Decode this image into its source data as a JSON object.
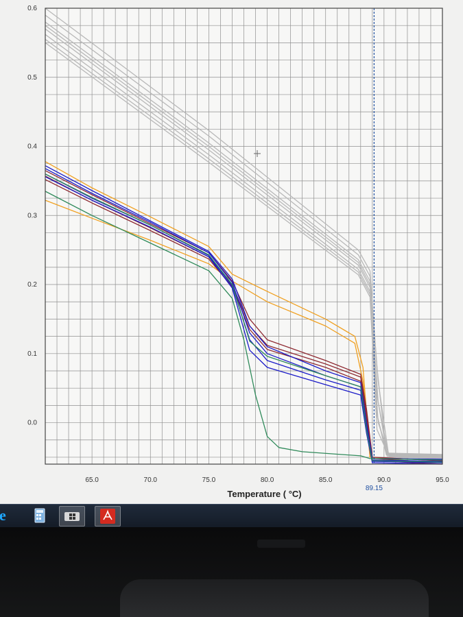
{
  "chart_data": {
    "type": "line",
    "xlabel": "Temperature ( °C)",
    "ylabel": "",
    "xlim": [
      61,
      95
    ],
    "ylim": [
      -0.06,
      0.6
    ],
    "x_ticks": [
      65,
      70,
      75,
      80,
      85,
      90,
      95
    ],
    "x_tick_labels": [
      "65.0",
      "70.0",
      "75.0",
      "80.0",
      "85.0",
      "90.0",
      "95.0"
    ],
    "y_ticks": [
      0.0,
      0.1,
      0.2,
      0.3,
      0.4,
      0.5,
      0.6
    ],
    "y_tick_labels": [
      "0.0",
      "0.1",
      "0.2",
      "0.3",
      "0.4",
      "0.5",
      "0.6"
    ],
    "grid": true,
    "marker_line": {
      "x": 89.15,
      "label": "89.15"
    },
    "series": [
      {
        "color": "#b8b8b8",
        "x": [
          61,
          75,
          87.8,
          88.8,
          89.4,
          90.2,
          95
        ],
        "y": [
          0.6,
          0.423,
          0.25,
          0.22,
          0.08,
          -0.046,
          -0.048
        ]
      },
      {
        "color": "#b8b8b8",
        "x": [
          61,
          75,
          87.8,
          88.8,
          89.5,
          90.4,
          95
        ],
        "y": [
          0.59,
          0.415,
          0.243,
          0.212,
          0.06,
          -0.048,
          -0.05
        ]
      },
      {
        "color": "#b8b8b8",
        "x": [
          61,
          75,
          87.8,
          88.8,
          89.4,
          90.3,
          95
        ],
        "y": [
          0.58,
          0.405,
          0.236,
          0.205,
          0.04,
          -0.05,
          -0.052
        ]
      },
      {
        "color": "#b8b8b8",
        "x": [
          61,
          75,
          87.8,
          88.8,
          89.5,
          90.4,
          95
        ],
        "y": [
          0.575,
          0.4,
          0.232,
          0.2,
          0.03,
          -0.049,
          -0.051
        ]
      },
      {
        "color": "#b8b8b8",
        "x": [
          61,
          75,
          87.8,
          88.8,
          89.3,
          90.2,
          95
        ],
        "y": [
          0.57,
          0.395,
          0.228,
          0.196,
          0.02,
          -0.047,
          -0.049
        ]
      },
      {
        "color": "#b8b8b8",
        "x": [
          61,
          75,
          87.8,
          88.8,
          89.4,
          90.3,
          95
        ],
        "y": [
          0.562,
          0.388,
          0.222,
          0.19,
          0.01,
          -0.046,
          -0.048
        ]
      },
      {
        "color": "#b8b8b8",
        "x": [
          61,
          75,
          87.8,
          88.8,
          89.5,
          90.4,
          95
        ],
        "y": [
          0.555,
          0.382,
          0.218,
          0.186,
          0.0,
          -0.045,
          -0.047
        ]
      },
      {
        "color": "#b8b8b8",
        "x": [
          61,
          75,
          87.8,
          88.8,
          89.4,
          90.3,
          95
        ],
        "y": [
          0.55,
          0.377,
          0.214,
          0.182,
          -0.01,
          -0.044,
          -0.046
        ]
      },
      {
        "color": "#f0a020",
        "x": [
          61,
          65,
          70,
          75,
          77,
          80,
          85,
          87.5,
          88.2,
          88.8,
          95
        ],
        "y": [
          0.378,
          0.34,
          0.298,
          0.255,
          0.215,
          0.19,
          0.15,
          0.125,
          0.08,
          -0.05,
          -0.055
        ]
      },
      {
        "color": "#f0a020",
        "x": [
          61,
          65,
          70,
          75,
          77,
          80,
          85,
          87.5,
          88.2,
          88.8,
          95
        ],
        "y": [
          0.322,
          0.296,
          0.264,
          0.23,
          0.205,
          0.175,
          0.14,
          0.115,
          0.06,
          -0.05,
          -0.055
        ]
      },
      {
        "color": "#8e2a32",
        "x": [
          61,
          65,
          70,
          75,
          77,
          78.5,
          80,
          85,
          88,
          88.5,
          89,
          95
        ],
        "y": [
          0.365,
          0.33,
          0.288,
          0.246,
          0.205,
          0.15,
          0.12,
          0.09,
          0.07,
          0.02,
          -0.05,
          -0.055
        ]
      },
      {
        "color": "#8e2a32",
        "x": [
          61,
          65,
          70,
          75,
          77,
          78.5,
          80,
          85,
          88,
          88.5,
          89,
          95
        ],
        "y": [
          0.357,
          0.322,
          0.282,
          0.24,
          0.2,
          0.14,
          0.112,
          0.085,
          0.066,
          0.015,
          -0.052,
          -0.058
        ]
      },
      {
        "color": "#8e2a32",
        "x": [
          61,
          65,
          70,
          75,
          77,
          78.5,
          80,
          85,
          88,
          88.5,
          89,
          95
        ],
        "y": [
          0.352,
          0.318,
          0.278,
          0.237,
          0.197,
          0.135,
          0.106,
          0.08,
          0.06,
          0.01,
          -0.055,
          -0.06
        ]
      },
      {
        "color": "#1a1ac8",
        "x": [
          61,
          65,
          70,
          75,
          77,
          78.5,
          80,
          85,
          88,
          88.5,
          89,
          95
        ],
        "y": [
          0.372,
          0.336,
          0.292,
          0.248,
          0.208,
          0.14,
          0.11,
          0.075,
          0.058,
          0.0,
          -0.052,
          -0.053
        ]
      },
      {
        "color": "#1a1ac8",
        "x": [
          61,
          65,
          70,
          75,
          77,
          78.5,
          80,
          85,
          88,
          88.5,
          89,
          95
        ],
        "y": [
          0.368,
          0.332,
          0.29,
          0.246,
          0.203,
          0.13,
          0.1,
          0.068,
          0.052,
          -0.005,
          -0.054,
          -0.056
        ]
      },
      {
        "color": "#1a1ac8",
        "x": [
          61,
          65,
          70,
          75,
          77,
          78.5,
          80,
          85,
          88,
          88.5,
          89,
          95
        ],
        "y": [
          0.36,
          0.325,
          0.286,
          0.242,
          0.198,
          0.12,
          0.09,
          0.062,
          0.047,
          -0.01,
          -0.056,
          -0.058
        ]
      },
      {
        "color": "#1a1ac8",
        "x": [
          61,
          65,
          70,
          75,
          77,
          78.5,
          80,
          85,
          88,
          88.5,
          89,
          95
        ],
        "y": [
          0.356,
          0.322,
          0.283,
          0.24,
          0.195,
          0.105,
          0.08,
          0.055,
          0.04,
          -0.015,
          -0.058,
          -0.06
        ]
      },
      {
        "color": "#2f8a5a",
        "x": [
          61,
          65,
          70,
          75,
          77,
          78.5,
          80,
          85,
          88,
          88.5,
          89,
          95
        ],
        "y": [
          0.36,
          0.326,
          0.286,
          0.243,
          0.2,
          0.118,
          0.096,
          0.068,
          0.052,
          -0.01,
          -0.055,
          -0.057
        ]
      },
      {
        "color": "#2f8a5a",
        "x": [
          61,
          65,
          70,
          75,
          77,
          78,
          79,
          80,
          81,
          83,
          88,
          88.8,
          95
        ],
        "y": [
          0.335,
          0.3,
          0.26,
          0.22,
          0.18,
          0.12,
          0.04,
          -0.02,
          -0.036,
          -0.042,
          -0.048,
          -0.052,
          -0.054
        ]
      }
    ]
  },
  "taskbar": {
    "items": [
      {
        "icon": "ie-icon",
        "color": "#1ea7ff"
      },
      {
        "icon": "calculator-icon",
        "color": "#5a9bd8"
      },
      {
        "icon": "windows-app-icon",
        "color": "#ffffff"
      },
      {
        "icon": "pdf-icon",
        "color": "#d42b20"
      }
    ]
  }
}
